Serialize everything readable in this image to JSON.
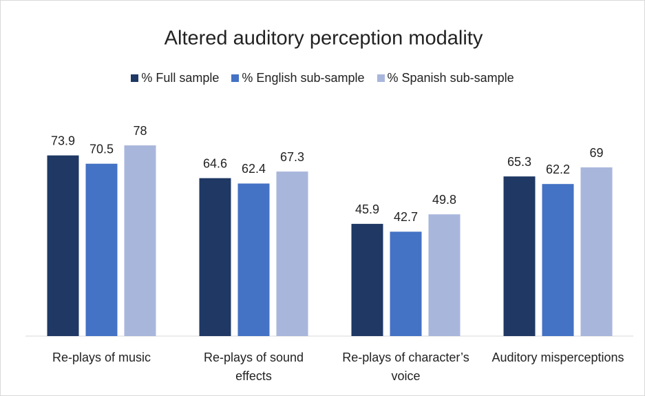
{
  "chart_data": {
    "type": "bar",
    "title": "Altered auditory perception modality",
    "categories": [
      "Re-plays of music",
      "Re-plays of sound effects",
      "Re-plays of character’s voice",
      "Auditory misperceptions"
    ],
    "series": [
      {
        "name": "% Full sample",
        "color": "#1f3864",
        "values": [
          73.9,
          64.6,
          45.9,
          65.3
        ]
      },
      {
        "name": "% English sub-sample",
        "color": "#4472c4",
        "values": [
          70.5,
          62.4,
          42.7,
          62.2
        ]
      },
      {
        "name": "% Spanish sub-sample",
        "color": "#a9b6dc",
        "values": [
          78,
          67.3,
          49.8,
          69
        ]
      }
    ],
    "ylim": [
      0,
      100
    ],
    "legend": "top"
  }
}
